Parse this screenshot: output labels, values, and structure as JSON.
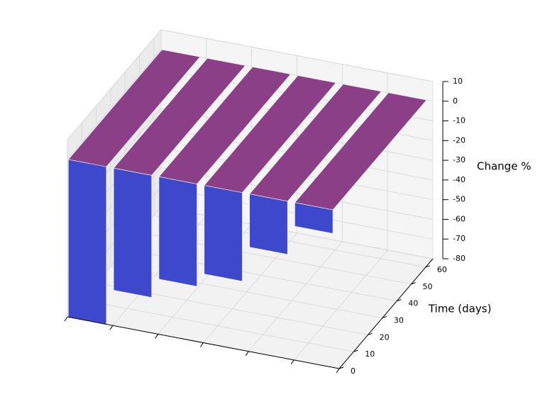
{
  "chart_data": {
    "type": "bar3d",
    "categories": [
      null,
      null,
      null,
      null,
      null,
      null
    ],
    "values": [
      -80,
      -62,
      -52,
      -45,
      -27,
      -12
    ],
    "front_color": "#3d48cc",
    "top_color": "#8b3f87",
    "ylabel": "Time (days)",
    "ylim": [
      0,
      65
    ],
    "yticks": [
      0,
      10,
      20,
      30,
      40,
      50,
      60
    ],
    "zlabel": "Change %",
    "zlim": [
      -80,
      10
    ],
    "zticks": [
      10,
      0,
      -10,
      -20,
      -30,
      -40,
      -50,
      -60,
      -70,
      -80
    ],
    "grid": true
  }
}
